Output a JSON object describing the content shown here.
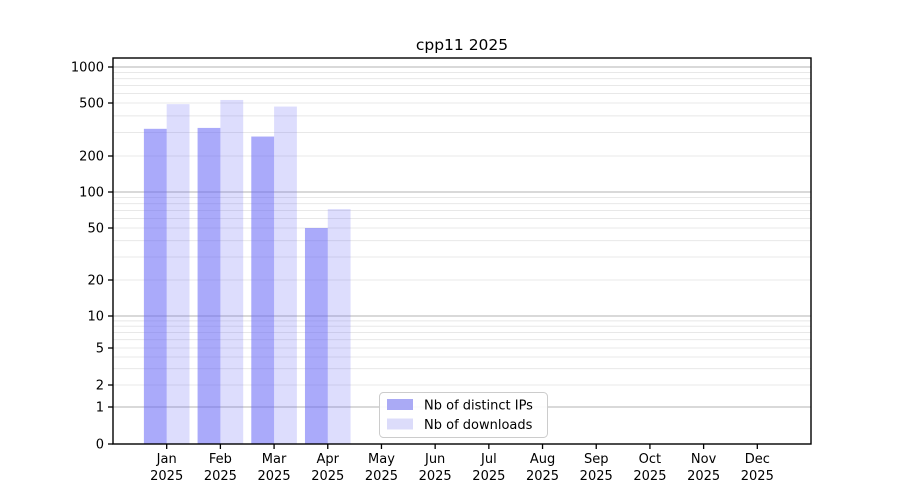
{
  "chart_data": {
    "type": "bar",
    "title": "cpp11 2025",
    "categories": [
      "Jan 2025",
      "Feb 2025",
      "Mar 2025",
      "Apr 2025",
      "May 2025",
      "Jun 2025",
      "Jul 2025",
      "Aug 2025",
      "Sep 2025",
      "Oct 2025",
      "Nov 2025",
      "Dec 2025"
    ],
    "series": [
      {
        "name": "Nb of distinct IPs",
        "color": "#aaaaf5",
        "fill": "rgba(100,100,245,0.55)",
        "values": [
          320,
          325,
          280,
          50,
          0,
          0,
          0,
          0,
          0,
          0,
          0,
          0
        ]
      },
      {
        "name": "Nb of downloads",
        "color": "#dcdcfa",
        "fill": "rgba(100,100,245,0.22)",
        "values": [
          490,
          530,
          470,
          72,
          0,
          0,
          0,
          0,
          0,
          0,
          0,
          0
        ]
      }
    ],
    "y_axis": {
      "scale": "log-1-2-5 with linear segment below 1",
      "ticks": [
        0,
        1,
        2,
        5,
        10,
        20,
        50,
        100,
        200,
        500,
        1000
      ],
      "major_gridlines": [
        1,
        10,
        100,
        1000
      ],
      "ylim": [
        0,
        1150
      ]
    },
    "legend": {
      "entries": [
        "Nb of distinct IPs",
        "Nb of downloads"
      ],
      "position": "bottom-center"
    },
    "grid": "horizontal major + minor",
    "colors": {
      "grid_major": "#b3b3b3",
      "grid_minor": "#e8e8e8",
      "axis": "#000000",
      "legend_border": "#cccccc",
      "background": "#ffffff"
    }
  }
}
